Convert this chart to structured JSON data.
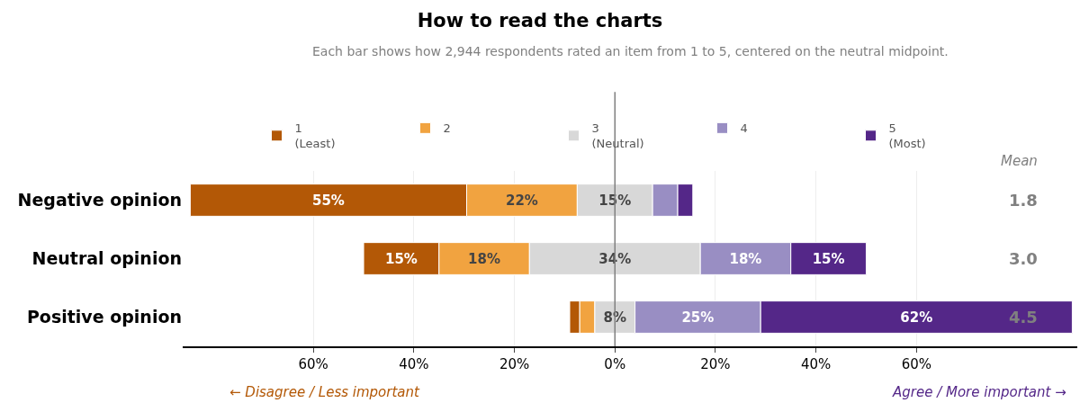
{
  "chart_data": {
    "type": "bar",
    "orientation": "horizontal",
    "title": "How to read the charts",
    "subtitle": "Each bar shows how 2,944 respondents rated an item from 1 to 5, centered on the neutral midpoint.",
    "categories": [
      "Negative opinion",
      "Neutral opinion",
      "Positive opinion"
    ],
    "series": [
      {
        "name": "1\n(Least)",
        "color": "#b35806",
        "base": [
          -84.5,
          -50,
          -9
        ],
        "values": [
          55,
          15,
          2
        ],
        "value_labels": [
          "55%",
          "15%",
          null
        ]
      },
      {
        "name": "2",
        "color": "#f1a340",
        "base": [
          -29.5,
          -35,
          -7
        ],
        "values": [
          22,
          18,
          3
        ],
        "value_labels": [
          "22%",
          "18%",
          null
        ]
      },
      {
        "name": "3\n(Neutral)",
        "color": "#d8d8d8",
        "base": [
          -7.5,
          -17,
          -4
        ],
        "values": [
          15,
          34,
          8
        ],
        "value_labels": [
          "15%",
          "34%",
          "8%"
        ]
      },
      {
        "name": "4",
        "color": "#998ec3",
        "base": [
          7.5,
          17,
          4
        ],
        "values": [
          5,
          18,
          25
        ],
        "value_labels": [
          null,
          "18%",
          "25%"
        ]
      },
      {
        "name": "5\n(Most)",
        "color": "#542788",
        "base": [
          12.5,
          35,
          29
        ],
        "values": [
          3,
          15,
          62
        ],
        "value_labels": [
          null,
          "15%",
          "62%"
        ]
      }
    ],
    "xlim": [
      -86,
      92
    ],
    "xticks": [
      {
        "value": -60,
        "label": "60%"
      },
      {
        "value": -40,
        "label": "40%"
      },
      {
        "value": -20,
        "label": "20%"
      },
      {
        "value": 0,
        "label": "0%"
      },
      {
        "value": 20,
        "label": "20%"
      },
      {
        "value": 40,
        "label": "40%"
      },
      {
        "value": 60,
        "label": "60%"
      }
    ],
    "ref_lines": [
      {
        "axis": "x",
        "value": 0,
        "color": "#808080"
      }
    ],
    "grid": "x",
    "legend": "top",
    "annotations": [
      "Mean",
      "1.8",
      "3.0",
      "4.5",
      "← Disagree / Less important",
      "Agree / More important →"
    ]
  }
}
